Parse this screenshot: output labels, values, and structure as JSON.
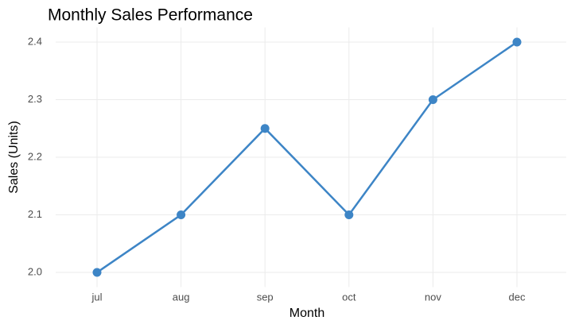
{
  "chart_data": {
    "type": "line",
    "title": "Monthly Sales Performance",
    "x_label": "Month",
    "y_label": "Sales (Units)",
    "categories": [
      "jul",
      "aug",
      "sep",
      "oct",
      "nov",
      "dec"
    ],
    "values": [
      2.0,
      2.1,
      2.25,
      2.1,
      2.3,
      2.4
    ],
    "color": "#3d85c6",
    "ylim": [
      1.98,
      2.42
    ],
    "yticks": [
      {
        "value": 2.0,
        "label": "2.0"
      },
      2.1,
      2.2,
      2.3,
      2.4
    ],
    "grid": true
  }
}
